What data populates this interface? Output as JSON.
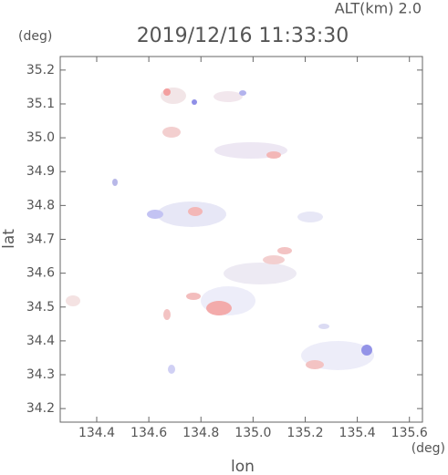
{
  "chart_data": {
    "type": "map",
    "title": "2019/12/16 11:33:30",
    "subtitle": "ALT(km) 2.0",
    "x_label": "lon",
    "y_label": "lat",
    "x_unit": "(deg)",
    "y_unit": "(deg)",
    "xlim": [
      134.26,
      135.65
    ],
    "ylim": [
      34.16,
      35.24
    ],
    "xticks": [
      134.4,
      134.6,
      134.8,
      {
        "value": 135,
        "label": "135.0"
      },
      135.2,
      135.4,
      135.6
    ],
    "yticks": [
      34.2,
      34.3,
      34.4,
      34.5,
      34.6,
      34.7,
      34.8,
      34.9,
      {
        "value": 35,
        "label": "35.0"
      },
      35.1,
      35.2
    ]
  }
}
